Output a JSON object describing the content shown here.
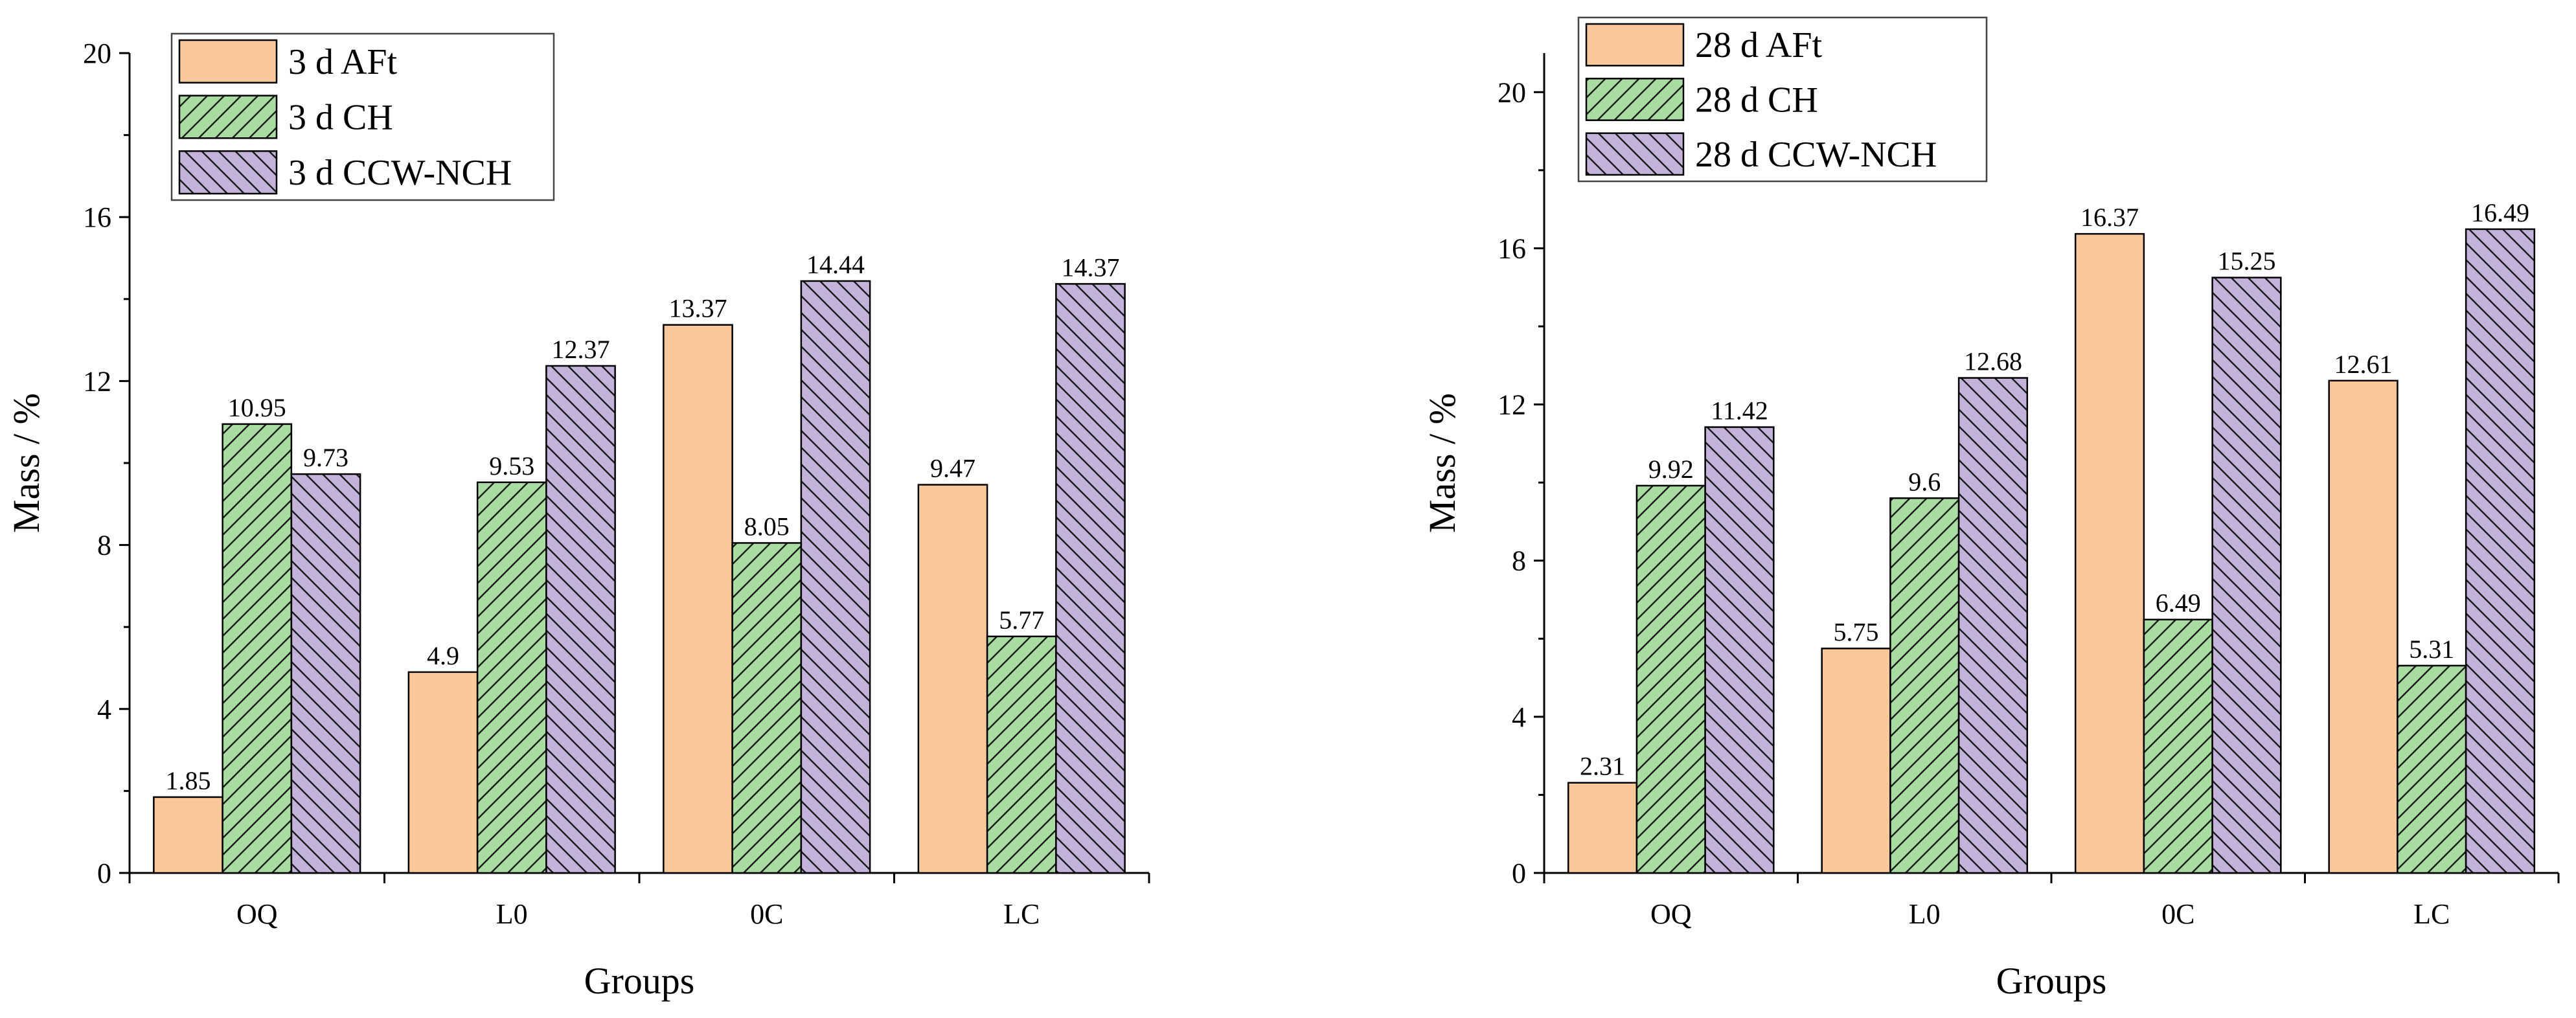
{
  "chart_data": [
    {
      "type": "bar",
      "title": "",
      "xlabel": "Groups",
      "ylabel": "Mass / %",
      "categories": [
        "OQ",
        "L0",
        "0C",
        "LC"
      ],
      "ylim": [
        0,
        20
      ],
      "yticks": [
        0,
        4,
        8,
        12,
        16,
        20
      ],
      "grid": false,
      "legend_position": "top-left",
      "series": [
        {
          "name": "3 d AFt",
          "values": [
            1.85,
            4.9,
            13.37,
            9.47
          ],
          "labels": [
            "1.85",
            "4.9",
            "13.37",
            "9.47"
          ],
          "color": "#F9C89A",
          "pattern": "none"
        },
        {
          "name": "3 d CH",
          "values": [
            10.95,
            9.53,
            8.05,
            5.77
          ],
          "labels": [
            "10.95",
            "9.53",
            "8.05",
            "5.77"
          ],
          "color": "#A8DCA0",
          "pattern": "forward-hatch"
        },
        {
          "name": "3 d CCW-NCH",
          "values": [
            9.73,
            12.37,
            14.44,
            14.37
          ],
          "labels": [
            "9.73",
            "12.37",
            "14.44",
            "14.37"
          ],
          "color": "#C3B3DA",
          "pattern": "backward-hatch"
        }
      ]
    },
    {
      "type": "bar",
      "title": "",
      "xlabel": "Groups",
      "ylabel": "Mass / %",
      "categories": [
        "OQ",
        "L0",
        "0C",
        "LC"
      ],
      "ylim": [
        0,
        21
      ],
      "yticks": [
        0,
        4,
        8,
        12,
        16,
        20
      ],
      "grid": false,
      "legend_position": "top-left",
      "series": [
        {
          "name": "28 d AFt",
          "values": [
            2.31,
            5.75,
            16.37,
            12.61
          ],
          "labels": [
            "2.31",
            "5.75",
            "16.37",
            "12.61"
          ],
          "color": "#F9C89A",
          "pattern": "none"
        },
        {
          "name": "28 d CH",
          "values": [
            9.92,
            9.6,
            6.49,
            5.31
          ],
          "labels": [
            "9.92",
            "9.6",
            "6.49",
            "5.31"
          ],
          "color": "#A8DCA0",
          "pattern": "forward-hatch"
        },
        {
          "name": "28 d CCW-NCH",
          "values": [
            11.42,
            12.68,
            15.25,
            16.49
          ],
          "labels": [
            "11.42",
            "12.68",
            "15.25",
            "16.49"
          ],
          "color": "#C3B3DA",
          "pattern": "backward-hatch"
        }
      ]
    }
  ]
}
